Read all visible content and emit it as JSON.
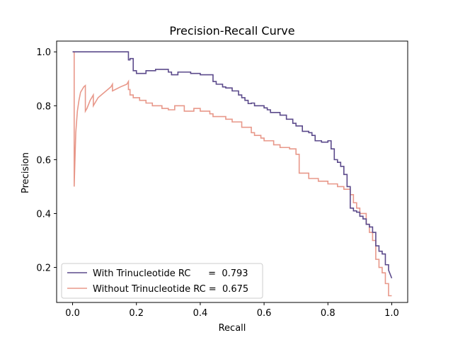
{
  "chart_data": {
    "type": "line",
    "title": "Precision-Recall Curve",
    "xlabel": "Recall",
    "ylabel": "Precision",
    "xlim": [
      -0.05,
      1.05
    ],
    "ylim": [
      0.07,
      1.04
    ],
    "xticks": [
      0.0,
      0.2,
      0.4,
      0.6,
      0.8,
      1.0
    ],
    "xtick_labels": [
      "0.0",
      "0.2",
      "0.4",
      "0.6",
      "0.8",
      "1.0"
    ],
    "yticks": [
      0.2,
      0.4,
      0.6,
      0.8,
      1.0
    ],
    "ytick_labels": [
      "0.2",
      "0.4",
      "0.6",
      "0.8",
      "1.0"
    ],
    "grid": false,
    "legend_position": "lower-left",
    "series": [
      {
        "name": "With Trinucleotide RC      =  0.793",
        "color": "#5b4a8b",
        "x": [
          0.0,
          0.005,
          0.17,
          0.175,
          0.175,
          0.18,
          0.18,
          0.19,
          0.19,
          0.2,
          0.2,
          0.23,
          0.23,
          0.26,
          0.26,
          0.3,
          0.3,
          0.31,
          0.31,
          0.33,
          0.33,
          0.37,
          0.37,
          0.4,
          0.4,
          0.44,
          0.44,
          0.45,
          0.45,
          0.47,
          0.47,
          0.48,
          0.48,
          0.5,
          0.5,
          0.52,
          0.52,
          0.53,
          0.53,
          0.54,
          0.54,
          0.55,
          0.55,
          0.56,
          0.56,
          0.57,
          0.57,
          0.6,
          0.6,
          0.61,
          0.61,
          0.62,
          0.62,
          0.65,
          0.65,
          0.67,
          0.67,
          0.69,
          0.69,
          0.7,
          0.7,
          0.72,
          0.72,
          0.74,
          0.74,
          0.75,
          0.75,
          0.76,
          0.76,
          0.78,
          0.78,
          0.8,
          0.8,
          0.81,
          0.81,
          0.82,
          0.82,
          0.83,
          0.83,
          0.84,
          0.84,
          0.85,
          0.85,
          0.86,
          0.86,
          0.87,
          0.87,
          0.88,
          0.88,
          0.89,
          0.89,
          0.9,
          0.9,
          0.91,
          0.91,
          0.92,
          0.92,
          0.93,
          0.93,
          0.94,
          0.94,
          0.95,
          0.95,
          0.96,
          0.96,
          0.97,
          0.97,
          0.98,
          0.98,
          0.99,
          0.99,
          1.0
        ],
        "y": [
          1.0,
          1.0,
          1.0,
          1.0,
          0.97,
          0.97,
          0.975,
          0.975,
          0.93,
          0.93,
          0.92,
          0.92,
          0.93,
          0.93,
          0.935,
          0.935,
          0.925,
          0.925,
          0.915,
          0.915,
          0.925,
          0.925,
          0.92,
          0.92,
          0.915,
          0.915,
          0.89,
          0.89,
          0.88,
          0.88,
          0.87,
          0.87,
          0.866,
          0.866,
          0.855,
          0.855,
          0.84,
          0.84,
          0.83,
          0.83,
          0.82,
          0.82,
          0.808,
          0.808,
          0.81,
          0.81,
          0.8,
          0.8,
          0.792,
          0.792,
          0.785,
          0.785,
          0.775,
          0.775,
          0.765,
          0.765,
          0.75,
          0.75,
          0.735,
          0.735,
          0.725,
          0.725,
          0.705,
          0.705,
          0.7,
          0.7,
          0.69,
          0.69,
          0.67,
          0.67,
          0.665,
          0.665,
          0.67,
          0.67,
          0.64,
          0.64,
          0.6,
          0.6,
          0.59,
          0.59,
          0.575,
          0.575,
          0.545,
          0.545,
          0.5,
          0.5,
          0.42,
          0.42,
          0.41,
          0.41,
          0.405,
          0.405,
          0.39,
          0.39,
          0.38,
          0.38,
          0.36,
          0.36,
          0.35,
          0.35,
          0.33,
          0.33,
          0.28,
          0.28,
          0.26,
          0.26,
          0.25,
          0.25,
          0.21,
          0.21,
          0.19,
          0.16
        ]
      },
      {
        "name": "Without Trinucleotide RC =  0.675",
        "color": "#e8988a",
        "x": [
          0.0,
          0.005,
          0.005,
          0.01,
          0.015,
          0.02,
          0.025,
          0.03,
          0.035,
          0.04,
          0.04,
          0.045,
          0.05,
          0.055,
          0.06,
          0.065,
          0.065,
          0.07,
          0.08,
          0.1,
          0.12,
          0.125,
          0.125,
          0.15,
          0.17,
          0.175,
          0.175,
          0.18,
          0.18,
          0.19,
          0.19,
          0.21,
          0.21,
          0.23,
          0.23,
          0.25,
          0.25,
          0.28,
          0.28,
          0.3,
          0.3,
          0.32,
          0.32,
          0.35,
          0.35,
          0.38,
          0.38,
          0.4,
          0.4,
          0.43,
          0.43,
          0.44,
          0.44,
          0.48,
          0.48,
          0.5,
          0.5,
          0.53,
          0.53,
          0.56,
          0.56,
          0.57,
          0.57,
          0.59,
          0.59,
          0.6,
          0.6,
          0.63,
          0.63,
          0.65,
          0.65,
          0.68,
          0.68,
          0.7,
          0.7,
          0.71,
          0.71,
          0.74,
          0.74,
          0.77,
          0.77,
          0.8,
          0.8,
          0.83,
          0.83,
          0.85,
          0.85,
          0.87,
          0.87,
          0.88,
          0.88,
          0.89,
          0.89,
          0.9,
          0.9,
          0.92,
          0.92,
          0.93,
          0.93,
          0.94,
          0.94,
          0.95,
          0.95,
          0.96,
          0.96,
          0.97,
          0.97,
          0.98,
          0.98,
          0.99,
          0.99,
          1.0
        ],
        "y": [
          1.0,
          1.0,
          0.5,
          0.7,
          0.78,
          0.82,
          0.85,
          0.86,
          0.87,
          0.875,
          0.78,
          0.79,
          0.805,
          0.82,
          0.83,
          0.84,
          0.8,
          0.81,
          0.83,
          0.85,
          0.87,
          0.88,
          0.855,
          0.87,
          0.88,
          0.89,
          0.86,
          0.86,
          0.84,
          0.84,
          0.83,
          0.83,
          0.82,
          0.82,
          0.81,
          0.81,
          0.8,
          0.8,
          0.79,
          0.79,
          0.785,
          0.785,
          0.8,
          0.8,
          0.78,
          0.78,
          0.79,
          0.79,
          0.78,
          0.78,
          0.77,
          0.77,
          0.76,
          0.76,
          0.75,
          0.75,
          0.74,
          0.74,
          0.72,
          0.72,
          0.7,
          0.7,
          0.69,
          0.69,
          0.68,
          0.68,
          0.67,
          0.67,
          0.655,
          0.655,
          0.645,
          0.645,
          0.64,
          0.64,
          0.62,
          0.62,
          0.55,
          0.55,
          0.53,
          0.53,
          0.52,
          0.52,
          0.51,
          0.51,
          0.5,
          0.5,
          0.49,
          0.49,
          0.47,
          0.47,
          0.44,
          0.44,
          0.42,
          0.42,
          0.4,
          0.4,
          0.36,
          0.36,
          0.33,
          0.33,
          0.3,
          0.3,
          0.23,
          0.23,
          0.2,
          0.2,
          0.18,
          0.18,
          0.14,
          0.14,
          0.095,
          0.095
        ]
      }
    ]
  }
}
